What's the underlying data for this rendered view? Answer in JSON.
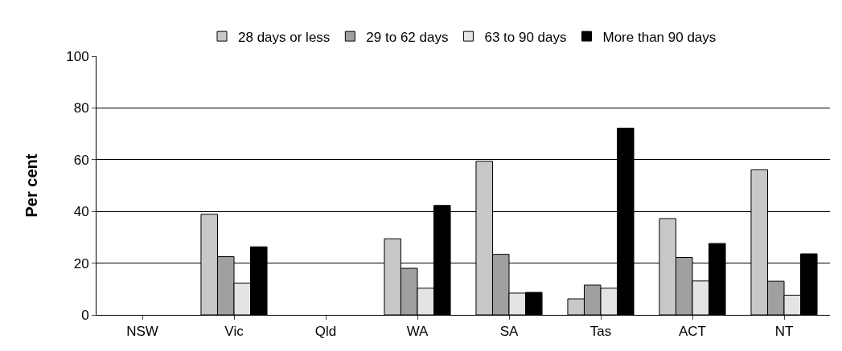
{
  "chart_data": {
    "type": "bar",
    "ylabel": "Per cent",
    "categories": [
      "NSW",
      "Vic",
      "Qld",
      "WA",
      "SA",
      "Tas",
      "ACT",
      "NT"
    ],
    "series": [
      {
        "name": "28 days or less",
        "color": "#c8c8c8",
        "values": [
          null,
          38.9,
          null,
          29.4,
          59.4,
          6.2,
          37.2,
          56.1
        ]
      },
      {
        "name": "29 to 62 days",
        "color": "#a0a0a0",
        "values": [
          null,
          22.5,
          null,
          18,
          23.4,
          11.5,
          22.2,
          13
        ]
      },
      {
        "name": "63 to 90 days",
        "color": "#e4e4e4",
        "values": [
          null,
          12.3,
          null,
          10.3,
          8.4,
          10.3,
          13.1,
          7.6
        ]
      },
      {
        "name": "More than 90 days",
        "color": "#000000",
        "values": [
          null,
          26.3,
          null,
          42.3,
          8.7,
          72.2,
          27.6,
          23.6
        ]
      }
    ],
    "ylim": [
      0,
      100
    ],
    "yticks": [
      0,
      20,
      40,
      60,
      80,
      100
    ],
    "grid": "y",
    "legend": "top"
  }
}
